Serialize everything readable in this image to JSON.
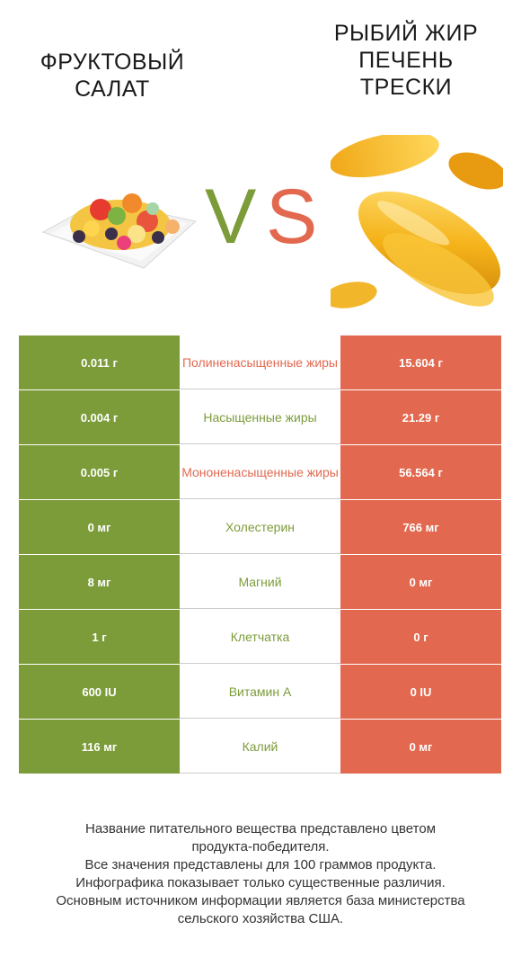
{
  "header": {
    "left_title": "ФРУКТОВЫЙ САЛАТ",
    "right_title": "РЫБИЙ ЖИР ПЕЧЕНЬ ТРЕСКИ",
    "vs_v": "V",
    "vs_s": "S"
  },
  "colors": {
    "left_product": "#7c9c3a",
    "right_product": "#e2694f"
  },
  "images": {
    "left": "fruit-salad-photo",
    "right": "fish-oil-capsules-photo"
  },
  "rows": [
    {
      "left": "0.011 г",
      "nutrient": "Полиненасыщенные жиры",
      "right": "15.604 г",
      "winner": "right"
    },
    {
      "left": "0.004 г",
      "nutrient": "Насыщенные жиры",
      "right": "21.29 г",
      "winner": "left"
    },
    {
      "left": "0.005 г",
      "nutrient": "Мононенасыщенные жиры",
      "right": "56.564 г",
      "winner": "right"
    },
    {
      "left": "0 мг",
      "nutrient": "Холестерин",
      "right": "766 мг",
      "winner": "left"
    },
    {
      "left": "8 мг",
      "nutrient": "Магний",
      "right": "0 мг",
      "winner": "left"
    },
    {
      "left": "1 г",
      "nutrient": "Клетчатка",
      "right": "0 г",
      "winner": "left"
    },
    {
      "left": "600 IU",
      "nutrient": "Витамин А",
      "right": "0 IU",
      "winner": "left"
    },
    {
      "left": "116 мг",
      "nutrient": "Калий",
      "right": "0 мг",
      "winner": "left"
    }
  ],
  "footer": {
    "line1": "Название питательного вещества представлено цветом",
    "line2": "продукта-победителя.",
    "line3": "Все значения представлены для 100 граммов продукта.",
    "line4": "Инфографика показывает только существенные различия.",
    "line5": "Основным источником информации является база министерства",
    "line6": "сельского хозяйства США."
  }
}
